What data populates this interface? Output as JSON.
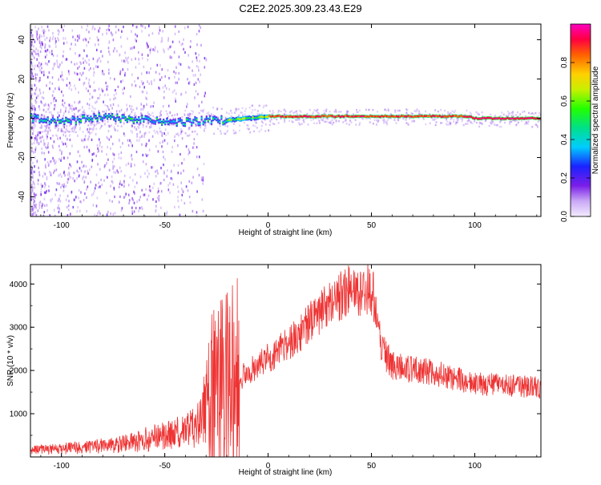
{
  "title": "C2E2.2025.309.23.43.E29",
  "colors": {
    "snr_line": "#ee3333",
    "background": "#ffffff",
    "axis": "#000000"
  },
  "chart_data": [
    {
      "type": "heatmap",
      "name": "spectrogram",
      "title": "C2E2.2025.309.23.43.E29",
      "xlabel": "Height of straight line (km)",
      "ylabel": "Frequency (Hz)",
      "xlim": [
        -115,
        132
      ],
      "ylim": [
        -50,
        48
      ],
      "xticks": [
        -100,
        -50,
        0,
        50,
        100
      ],
      "yticks": [
        -40,
        -20,
        0,
        20,
        40
      ],
      "colorbar": {
        "label": "Normalized spectral amplitude",
        "range": [
          0,
          1
        ],
        "ticks": [
          "0.0",
          "0.2",
          "0.4",
          "0.6",
          "0.8"
        ],
        "tick_values": [
          0,
          0.2,
          0.4,
          0.6,
          0.8
        ]
      },
      "ridge": [
        {
          "x": -115,
          "y": 0
        },
        {
          "x": -100,
          "y": -2
        },
        {
          "x": -80,
          "y": 1
        },
        {
          "x": -60,
          "y": -1
        },
        {
          "x": -40,
          "y": -2
        },
        {
          "x": -30,
          "y": -1
        },
        {
          "x": -20,
          "y": -1
        },
        {
          "x": -10,
          "y": 0
        },
        {
          "x": 0,
          "y": 1
        },
        {
          "x": 20,
          "y": 1
        },
        {
          "x": 60,
          "y": 1
        },
        {
          "x": 96,
          "y": 1
        },
        {
          "x": 100,
          "y": 0
        },
        {
          "x": 132,
          "y": 0
        }
      ]
    },
    {
      "type": "line",
      "name": "snr",
      "xlabel": "Height of straight line (km)",
      "ylabel": "SNR (10 * v/v)",
      "xlim": [
        -115,
        132
      ],
      "ylim": [
        0,
        4450
      ],
      "xticks": [
        -100,
        -50,
        0,
        50,
        100
      ],
      "yticks": [
        1000,
        2000,
        3000,
        4000
      ],
      "envelope": [
        {
          "x": -115,
          "y": 150
        },
        {
          "x": -90,
          "y": 220
        },
        {
          "x": -70,
          "y": 300
        },
        {
          "x": -55,
          "y": 450
        },
        {
          "x": -40,
          "y": 600
        },
        {
          "x": -32,
          "y": 800
        },
        {
          "x": -28,
          "y": 1400
        },
        {
          "x": -22,
          "y": 1700
        },
        {
          "x": -15,
          "y": 1800
        },
        {
          "x": -5,
          "y": 2100
        },
        {
          "x": 0,
          "y": 2300
        },
        {
          "x": 10,
          "y": 2600
        },
        {
          "x": 20,
          "y": 3100
        },
        {
          "x": 30,
          "y": 3600
        },
        {
          "x": 40,
          "y": 3850
        },
        {
          "x": 50,
          "y": 3900
        },
        {
          "x": 52,
          "y": 3600
        },
        {
          "x": 55,
          "y": 2500
        },
        {
          "x": 60,
          "y": 2100
        },
        {
          "x": 80,
          "y": 1950
        },
        {
          "x": 100,
          "y": 1700
        },
        {
          "x": 132,
          "y": 1600
        }
      ]
    }
  ]
}
